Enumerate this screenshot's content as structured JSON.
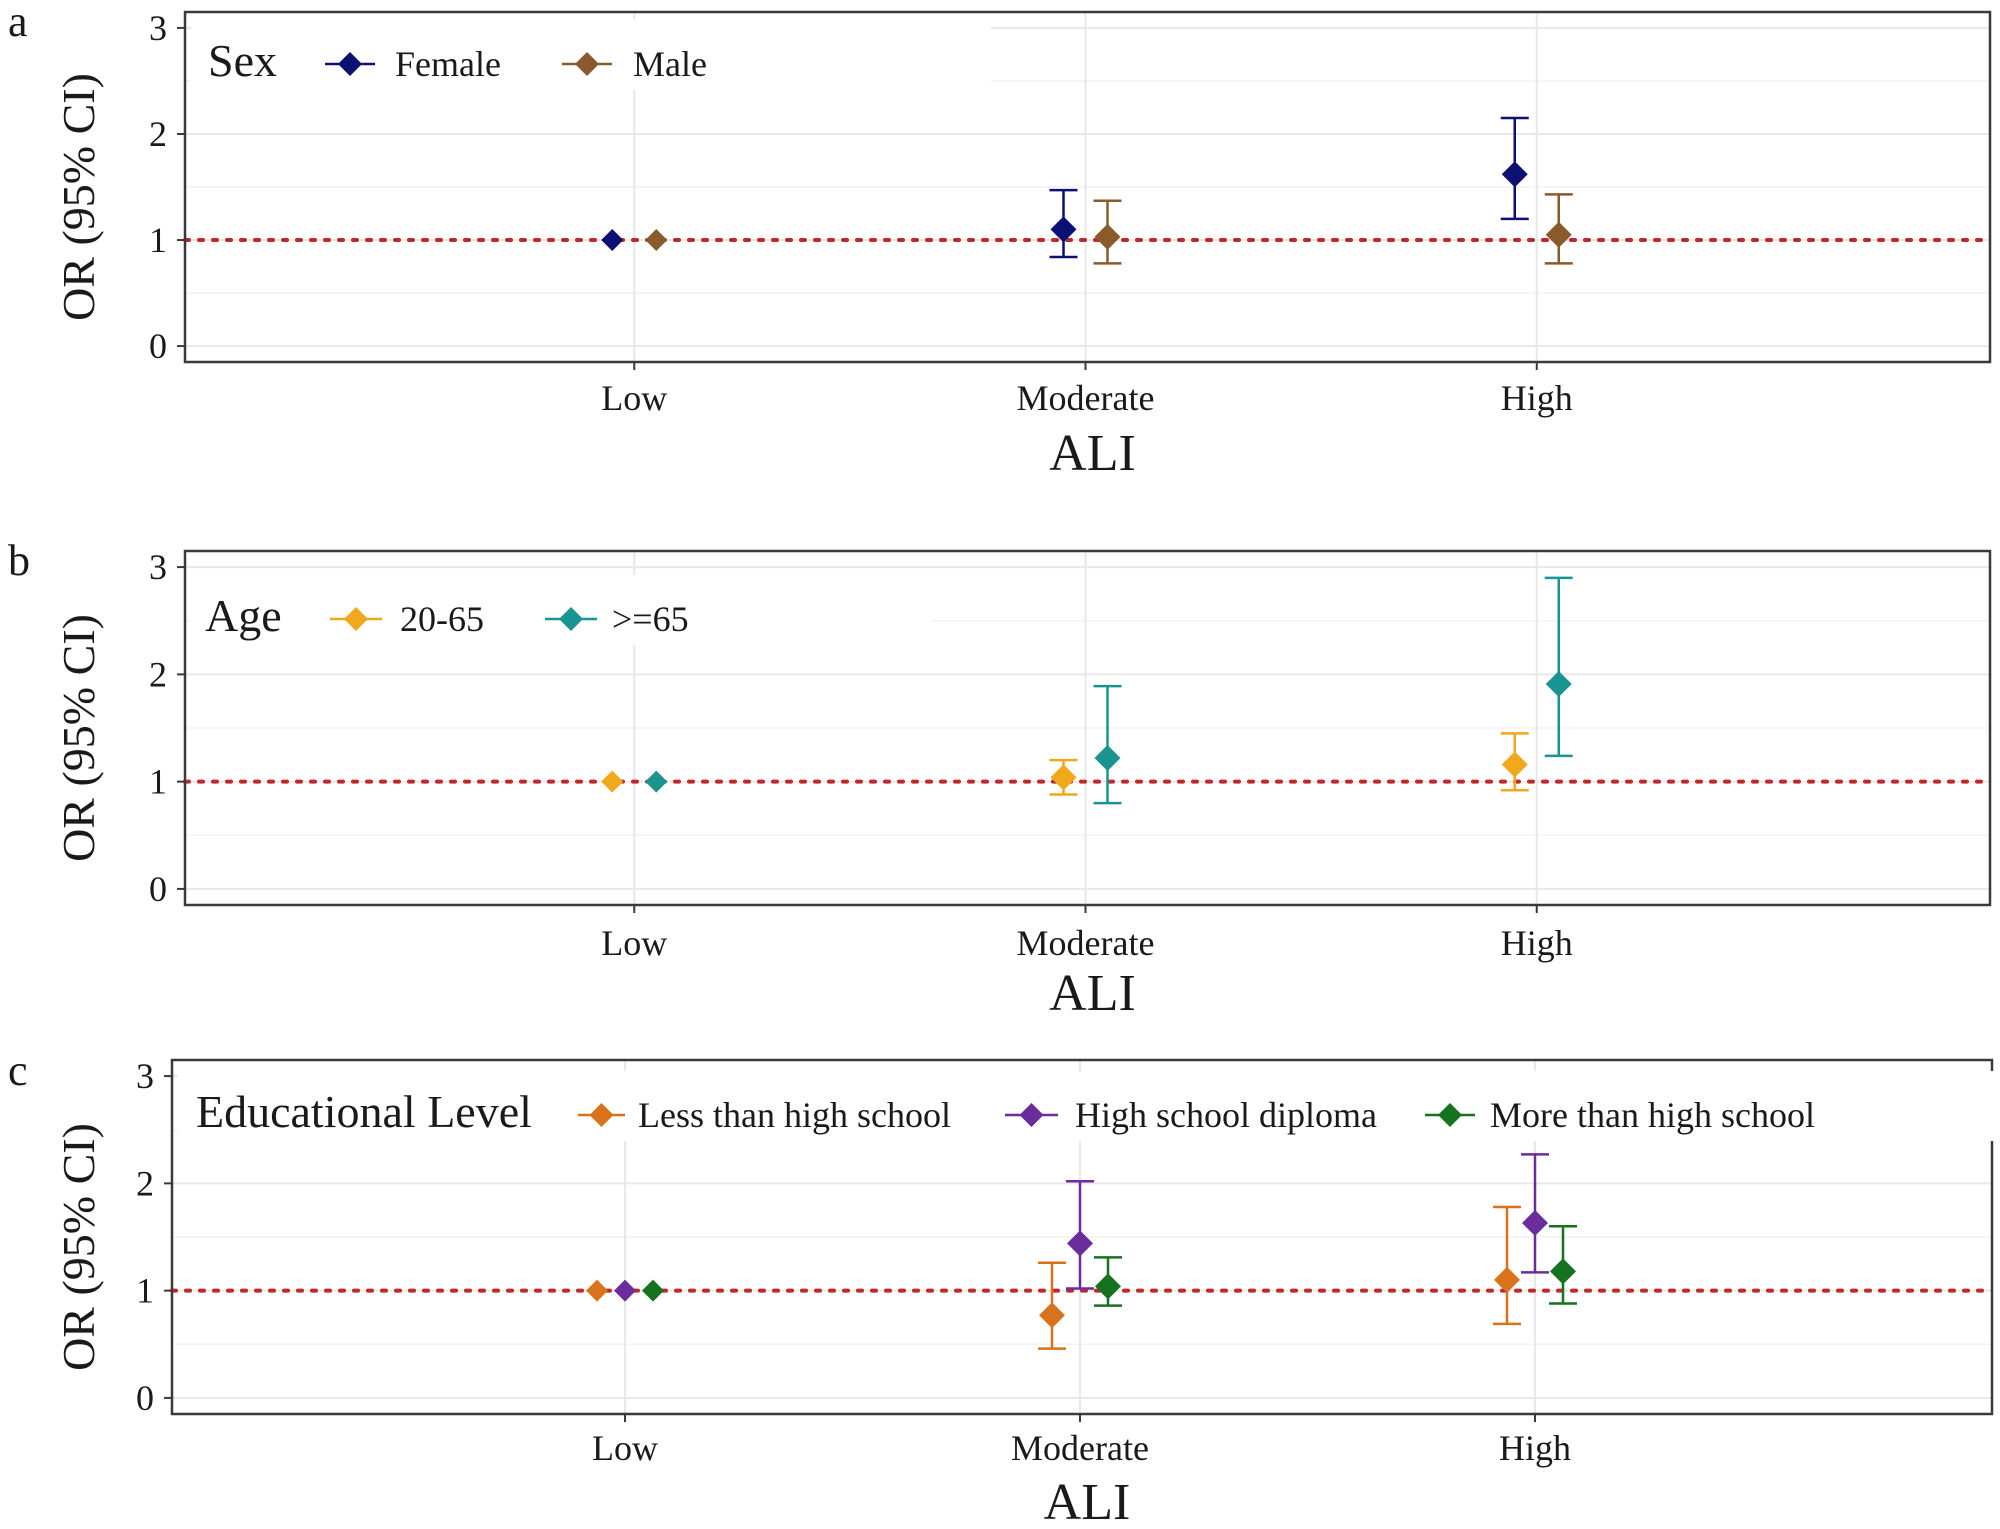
{
  "chart_data": [
    {
      "type": "scatter",
      "panel_label": "a",
      "xlabel": "ALI",
      "ylabel": "OR (95% CI)",
      "categories": [
        "Low",
        "Moderate",
        "High"
      ],
      "ylim": [
        0,
        3
      ],
      "yticks": [
        "0",
        "1",
        "2",
        "3"
      ],
      "reference_line": 1,
      "legend_title": "Sex",
      "legend_position": "top-left",
      "grid": true,
      "series": [
        {
          "name": "Female",
          "color": "#0d1073",
          "or": [
            1.0,
            1.1,
            1.62
          ],
          "lower": [
            1.0,
            0.84,
            1.2
          ],
          "upper": [
            1.0,
            1.47,
            2.15
          ]
        },
        {
          "name": "Male",
          "color": "#8a5a2b",
          "or": [
            1.0,
            1.03,
            1.05
          ],
          "lower": [
            1.0,
            0.78,
            0.78
          ],
          "upper": [
            1.0,
            1.37,
            1.43
          ]
        }
      ]
    },
    {
      "type": "scatter",
      "panel_label": "b",
      "xlabel": "ALI",
      "ylabel": "OR (95% CI)",
      "categories": [
        "Low",
        "Moderate",
        "High"
      ],
      "ylim": [
        0,
        3
      ],
      "yticks": [
        "0",
        "1",
        "2",
        "3"
      ],
      "reference_line": 1,
      "legend_title": "Age",
      "legend_position": "top-left",
      "grid": true,
      "series": [
        {
          "name": "20-65",
          "color": "#f0a81c",
          "or": [
            1.0,
            1.04,
            1.16
          ],
          "lower": [
            1.0,
            0.88,
            0.92
          ],
          "upper": [
            1.0,
            1.2,
            1.45
          ]
        },
        {
          "name": ">=65",
          "color": "#1a9490",
          "or": [
            1.0,
            1.22,
            1.91
          ],
          "lower": [
            1.0,
            0.8,
            1.24
          ],
          "upper": [
            1.0,
            1.89,
            2.9
          ]
        }
      ]
    },
    {
      "type": "scatter",
      "panel_label": "c",
      "xlabel": "ALI",
      "ylabel": "OR (95% CI)",
      "categories": [
        "Low",
        "Moderate",
        "High"
      ],
      "ylim": [
        0,
        3
      ],
      "yticks": [
        "0",
        "1",
        "2",
        "3"
      ],
      "reference_line": 1,
      "legend_title": "Educational Level",
      "legend_position": "top-left",
      "grid": true,
      "series": [
        {
          "name": "Less than high school",
          "color": "#d8731c",
          "or": [
            1.0,
            0.77,
            1.1
          ],
          "lower": [
            1.0,
            0.46,
            0.69
          ],
          "upper": [
            1.0,
            1.26,
            1.78
          ]
        },
        {
          "name": "High school diploma",
          "color": "#6a2d9c",
          "or": [
            1.0,
            1.44,
            1.63
          ],
          "lower": [
            1.0,
            1.02,
            1.17
          ],
          "upper": [
            1.0,
            2.02,
            2.27
          ]
        },
        {
          "name": "More than high school",
          "color": "#15731f",
          "or": [
            1.0,
            1.04,
            1.18
          ],
          "lower": [
            1.0,
            0.86,
            0.88
          ],
          "upper": [
            1.0,
            1.31,
            1.6
          ]
        }
      ]
    }
  ],
  "colors": {
    "reference_line": "#c0282d",
    "panel_border": "#3a3a3a",
    "grid_major": "#e8e8e8",
    "grid_minor": "#f2f2f2"
  }
}
